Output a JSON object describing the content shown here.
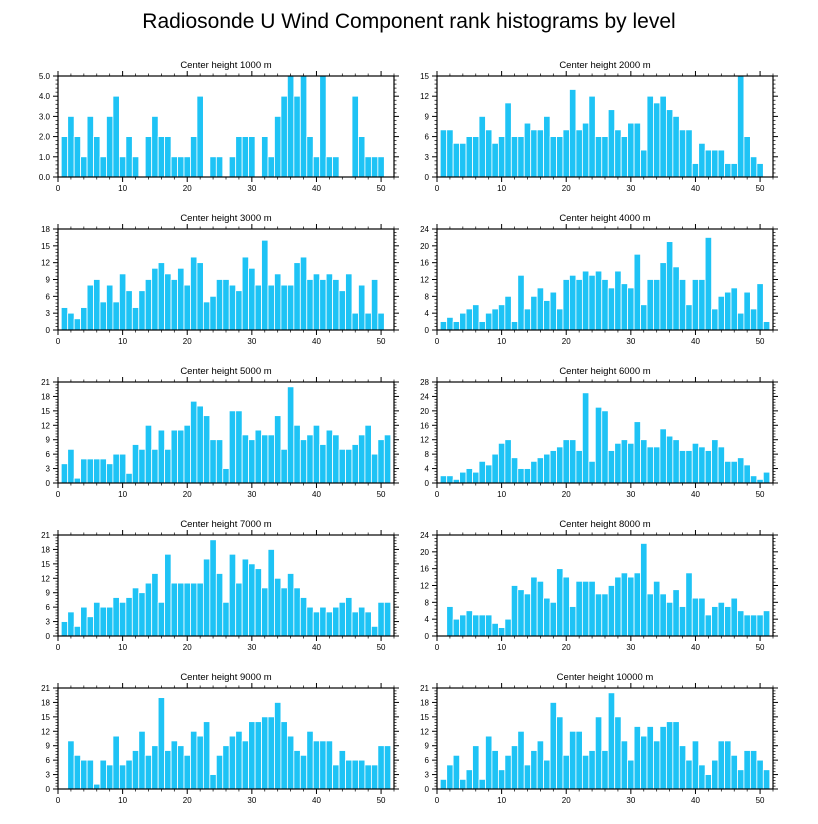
{
  "title": "Radiosonde U Wind Component rank histograms by level",
  "colors": {
    "bar": "#1EC3F5",
    "frame": "#000000",
    "bar_edge": "#ffffff"
  },
  "chart_data": [
    {
      "type": "bar",
      "title": "Center height 1000 m",
      "x": [
        1,
        2,
        3,
        4,
        5,
        6,
        7,
        8,
        9,
        10,
        11,
        12,
        13,
        14,
        15,
        16,
        17,
        18,
        19,
        20,
        21,
        22,
        23,
        24,
        25,
        26,
        27,
        28,
        29,
        30,
        31,
        32,
        33,
        34,
        35,
        36,
        37,
        38,
        39,
        40,
        41,
        42,
        43,
        44,
        45,
        46,
        47,
        48,
        49,
        50,
        51
      ],
      "values": [
        2.0,
        3.0,
        2.0,
        1.0,
        3.0,
        2.0,
        1.0,
        3.0,
        4.0,
        1.0,
        2.0,
        1.0,
        0.0,
        2.0,
        3.0,
        2.0,
        2.0,
        1.0,
        1.0,
        1.0,
        2.0,
        4.0,
        0.0,
        1.0,
        1.0,
        0.0,
        1.0,
        2.0,
        2.0,
        2.0,
        0.0,
        2.0,
        1.0,
        3.0,
        4.0,
        5.0,
        4.0,
        5.0,
        2.0,
        1.0,
        5.0,
        1.0,
        1.0,
        0.0,
        0.0,
        4.0,
        2.0,
        1.0,
        1.0,
        1.0,
        0.0
      ],
      "xlim": [
        0,
        52
      ],
      "ylim": [
        0,
        5
      ],
      "xticks": [
        0,
        10,
        20,
        30,
        40,
        50
      ],
      "yticks": [
        0,
        1,
        2,
        3,
        4,
        5
      ],
      "ytick_labels": [
        "0.0",
        "1.0",
        "2.0",
        "3.0",
        "4.0",
        "5.0"
      ],
      "xlabel": "",
      "ylabel": ""
    },
    {
      "type": "bar",
      "title": "Center height 2000 m",
      "x": [
        1,
        2,
        3,
        4,
        5,
        6,
        7,
        8,
        9,
        10,
        11,
        12,
        13,
        14,
        15,
        16,
        17,
        18,
        19,
        20,
        21,
        22,
        23,
        24,
        25,
        26,
        27,
        28,
        29,
        30,
        31,
        32,
        33,
        34,
        35,
        36,
        37,
        38,
        39,
        40,
        41,
        42,
        43,
        44,
        45,
        46,
        47,
        48,
        49,
        50,
        51
      ],
      "values": [
        7,
        7,
        5,
        5,
        6,
        6,
        9,
        7,
        5,
        6,
        11,
        6,
        6,
        8,
        7,
        7,
        9,
        6,
        6,
        7,
        13,
        7,
        8,
        12,
        6,
        6,
        10,
        7,
        6,
        8,
        8,
        4,
        12,
        11,
        12,
        10,
        9,
        7,
        7,
        2,
        5,
        4,
        4,
        4,
        2,
        2,
        15,
        6,
        3,
        2,
        0
      ],
      "xlim": [
        0,
        52
      ],
      "ylim": [
        0,
        15
      ],
      "xticks": [
        0,
        10,
        20,
        30,
        40,
        50
      ],
      "yticks": [
        0,
        3,
        6,
        9,
        12,
        15
      ],
      "ytick_labels": [
        "0",
        "3",
        "6",
        "9",
        "12",
        "15"
      ],
      "xlabel": "",
      "ylabel": ""
    },
    {
      "type": "bar",
      "title": "Center height 3000 m",
      "x": [
        1,
        2,
        3,
        4,
        5,
        6,
        7,
        8,
        9,
        10,
        11,
        12,
        13,
        14,
        15,
        16,
        17,
        18,
        19,
        20,
        21,
        22,
        23,
        24,
        25,
        26,
        27,
        28,
        29,
        30,
        31,
        32,
        33,
        34,
        35,
        36,
        37,
        38,
        39,
        40,
        41,
        42,
        43,
        44,
        45,
        46,
        47,
        48,
        49,
        50,
        51
      ],
      "values": [
        4,
        3,
        2,
        4,
        8,
        9,
        5,
        8,
        5,
        10,
        7,
        4,
        7,
        9,
        11,
        12,
        10,
        9,
        11,
        8,
        13,
        12,
        5,
        6,
        9,
        9,
        8,
        7,
        13,
        11,
        8,
        16,
        8,
        10,
        8,
        8,
        12,
        13,
        9,
        10,
        9,
        10,
        9,
        7,
        10,
        3,
        8,
        3,
        9,
        3,
        0
      ],
      "xlim": [
        0,
        52
      ],
      "ylim": [
        0,
        18
      ],
      "xticks": [
        0,
        10,
        20,
        30,
        40,
        50
      ],
      "yticks": [
        0,
        3,
        6,
        9,
        12,
        15,
        18
      ],
      "ytick_labels": [
        "0",
        "3",
        "6",
        "9",
        "12",
        "15",
        "18"
      ],
      "xlabel": "",
      "ylabel": ""
    },
    {
      "type": "bar",
      "title": "Center height 4000 m",
      "x": [
        1,
        2,
        3,
        4,
        5,
        6,
        7,
        8,
        9,
        10,
        11,
        12,
        13,
        14,
        15,
        16,
        17,
        18,
        19,
        20,
        21,
        22,
        23,
        24,
        25,
        26,
        27,
        28,
        29,
        30,
        31,
        32,
        33,
        34,
        35,
        36,
        37,
        38,
        39,
        40,
        41,
        42,
        43,
        44,
        45,
        46,
        47,
        48,
        49,
        50,
        51
      ],
      "values": [
        2,
        3,
        2,
        4,
        5,
        6,
        2,
        4,
        5,
        6,
        8,
        2,
        13,
        5,
        8,
        10,
        7,
        9,
        5,
        12,
        13,
        12,
        14,
        13,
        14,
        12,
        10,
        14,
        11,
        10,
        18,
        6,
        12,
        12,
        16,
        21,
        15,
        12,
        6,
        12,
        12,
        22,
        5,
        8,
        9,
        10,
        4,
        9,
        5,
        11,
        2
      ],
      "xlim": [
        0,
        52
      ],
      "ylim": [
        0,
        24
      ],
      "xticks": [
        0,
        10,
        20,
        30,
        40,
        50
      ],
      "yticks": [
        0,
        4,
        8,
        12,
        16,
        20,
        24
      ],
      "ytick_labels": [
        "0",
        "4",
        "8",
        "12",
        "16",
        "20",
        "24"
      ],
      "xlabel": "",
      "ylabel": ""
    },
    {
      "type": "bar",
      "title": "Center height 5000 m",
      "x": [
        1,
        2,
        3,
        4,
        5,
        6,
        7,
        8,
        9,
        10,
        11,
        12,
        13,
        14,
        15,
        16,
        17,
        18,
        19,
        20,
        21,
        22,
        23,
        24,
        25,
        26,
        27,
        28,
        29,
        30,
        31,
        32,
        33,
        34,
        35,
        36,
        37,
        38,
        39,
        40,
        41,
        42,
        43,
        44,
        45,
        46,
        47,
        48,
        49,
        50,
        51
      ],
      "values": [
        4,
        7,
        1,
        5,
        5,
        5,
        5,
        4,
        6,
        6,
        2,
        8,
        7,
        12,
        7,
        11,
        7,
        11,
        11,
        12,
        17,
        16,
        14,
        9,
        9,
        3,
        15,
        15,
        10,
        9,
        11,
        10,
        10,
        14,
        7,
        20,
        12,
        9,
        10,
        12,
        8,
        11,
        10,
        7,
        7,
        8,
        10,
        12,
        6,
        9,
        10
      ],
      "xlim": [
        0,
        52
      ],
      "ylim": [
        0,
        21
      ],
      "xticks": [
        0,
        10,
        20,
        30,
        40,
        50
      ],
      "yticks": [
        0,
        3,
        6,
        9,
        12,
        15,
        18,
        21
      ],
      "ytick_labels": [
        "0",
        "3",
        "6",
        "9",
        "12",
        "15",
        "18",
        "21"
      ],
      "xlabel": "",
      "ylabel": ""
    },
    {
      "type": "bar",
      "title": "Center height 6000 m",
      "x": [
        1,
        2,
        3,
        4,
        5,
        6,
        7,
        8,
        9,
        10,
        11,
        12,
        13,
        14,
        15,
        16,
        17,
        18,
        19,
        20,
        21,
        22,
        23,
        24,
        25,
        26,
        27,
        28,
        29,
        30,
        31,
        32,
        33,
        34,
        35,
        36,
        37,
        38,
        39,
        40,
        41,
        42,
        43,
        44,
        45,
        46,
        47,
        48,
        49,
        50,
        51
      ],
      "values": [
        2,
        2,
        1,
        3,
        4,
        3,
        6,
        5,
        8,
        11,
        12,
        7,
        4,
        4,
        6,
        7,
        8,
        9,
        10,
        12,
        12,
        9,
        25,
        6,
        21,
        20,
        9,
        11,
        12,
        11,
        17,
        12,
        10,
        10,
        15,
        13,
        12,
        9,
        9,
        11,
        10,
        9,
        12,
        10,
        6,
        6,
        7,
        5,
        2,
        1,
        3
      ],
      "xlim": [
        0,
        52
      ],
      "ylim": [
        0,
        28
      ],
      "xticks": [
        0,
        10,
        20,
        30,
        40,
        50
      ],
      "yticks": [
        0,
        4,
        8,
        12,
        16,
        20,
        24,
        28
      ],
      "ytick_labels": [
        "0",
        "4",
        "8",
        "12",
        "16",
        "20",
        "24",
        "28"
      ],
      "xlabel": "",
      "ylabel": ""
    },
    {
      "type": "bar",
      "title": "Center height 7000 m",
      "x": [
        1,
        2,
        3,
        4,
        5,
        6,
        7,
        8,
        9,
        10,
        11,
        12,
        13,
        14,
        15,
        16,
        17,
        18,
        19,
        20,
        21,
        22,
        23,
        24,
        25,
        26,
        27,
        28,
        29,
        30,
        31,
        32,
        33,
        34,
        35,
        36,
        37,
        38,
        39,
        40,
        41,
        42,
        43,
        44,
        45,
        46,
        47,
        48,
        49,
        50,
        51
      ],
      "values": [
        3,
        5,
        2,
        6,
        4,
        7,
        6,
        6,
        8,
        7,
        8,
        10,
        9,
        11,
        13,
        7,
        17,
        11,
        11,
        11,
        11,
        11,
        16,
        20,
        13,
        7,
        17,
        11,
        16,
        15,
        14,
        10,
        18,
        12,
        10,
        13,
        10,
        8,
        6,
        5,
        6,
        5,
        6,
        7,
        8,
        5,
        6,
        5,
        2,
        7,
        7
      ],
      "xlim": [
        0,
        52
      ],
      "ylim": [
        0,
        21
      ],
      "xticks": [
        0,
        10,
        20,
        30,
        40,
        50
      ],
      "yticks": [
        0,
        3,
        6,
        9,
        12,
        15,
        18,
        21
      ],
      "ytick_labels": [
        "0",
        "3",
        "6",
        "9",
        "12",
        "15",
        "18",
        "21"
      ],
      "xlabel": "",
      "ylabel": ""
    },
    {
      "type": "bar",
      "title": "Center height 8000 m",
      "x": [
        1,
        2,
        3,
        4,
        5,
        6,
        7,
        8,
        9,
        10,
        11,
        12,
        13,
        14,
        15,
        16,
        17,
        18,
        19,
        20,
        21,
        22,
        23,
        24,
        25,
        26,
        27,
        28,
        29,
        30,
        31,
        32,
        33,
        34,
        35,
        36,
        37,
        38,
        39,
        40,
        41,
        42,
        43,
        44,
        45,
        46,
        47,
        48,
        49,
        50,
        51
      ],
      "values": [
        0,
        7,
        4,
        5,
        6,
        5,
        5,
        5,
        3,
        2,
        4,
        12,
        11,
        10,
        14,
        13,
        9,
        8,
        16,
        14,
        7,
        13,
        13,
        13,
        10,
        10,
        12,
        14,
        15,
        14,
        15,
        22,
        10,
        13,
        10,
        8,
        11,
        7,
        15,
        9,
        9,
        5,
        7,
        8,
        7,
        9,
        6,
        5,
        5,
        5,
        6
      ],
      "xlim": [
        0,
        52
      ],
      "ylim": [
        0,
        24
      ],
      "xticks": [
        0,
        10,
        20,
        30,
        40,
        50
      ],
      "yticks": [
        0,
        4,
        8,
        12,
        16,
        20,
        24
      ],
      "ytick_labels": [
        "0",
        "4",
        "8",
        "12",
        "16",
        "20",
        "24"
      ],
      "xlabel": "",
      "ylabel": ""
    },
    {
      "type": "bar",
      "title": "Center height 9000 m",
      "x": [
        1,
        2,
        3,
        4,
        5,
        6,
        7,
        8,
        9,
        10,
        11,
        12,
        13,
        14,
        15,
        16,
        17,
        18,
        19,
        20,
        21,
        22,
        23,
        24,
        25,
        26,
        27,
        28,
        29,
        30,
        31,
        32,
        33,
        34,
        35,
        36,
        37,
        38,
        39,
        40,
        41,
        42,
        43,
        44,
        45,
        46,
        47,
        48,
        49,
        50,
        51
      ],
      "values": [
        0,
        10,
        7,
        6,
        6,
        1,
        6,
        5,
        11,
        5,
        6,
        8,
        12,
        7,
        9,
        19,
        8,
        10,
        9,
        7,
        12,
        11,
        14,
        3,
        7,
        9,
        11,
        12,
        10,
        14,
        14,
        15,
        15,
        18,
        14,
        11,
        8,
        7,
        12,
        10,
        10,
        10,
        5,
        8,
        6,
        6,
        6,
        5,
        5,
        9,
        9
      ],
      "xlim": [
        0,
        52
      ],
      "ylim": [
        0,
        21
      ],
      "xticks": [
        0,
        10,
        20,
        30,
        40,
        50
      ],
      "yticks": [
        0,
        3,
        6,
        9,
        12,
        15,
        18,
        21
      ],
      "ytick_labels": [
        "0",
        "3",
        "6",
        "9",
        "12",
        "15",
        "18",
        "21"
      ],
      "xlabel": "",
      "ylabel": ""
    },
    {
      "type": "bar",
      "title": "Center height 10000 m",
      "x": [
        1,
        2,
        3,
        4,
        5,
        6,
        7,
        8,
        9,
        10,
        11,
        12,
        13,
        14,
        15,
        16,
        17,
        18,
        19,
        20,
        21,
        22,
        23,
        24,
        25,
        26,
        27,
        28,
        29,
        30,
        31,
        32,
        33,
        34,
        35,
        36,
        37,
        38,
        39,
        40,
        41,
        42,
        43,
        44,
        45,
        46,
        47,
        48,
        49,
        50,
        51
      ],
      "values": [
        2,
        5,
        7,
        2,
        4,
        9,
        2,
        11,
        8,
        4,
        7,
        9,
        12,
        5,
        8,
        10,
        6,
        18,
        15,
        7,
        12,
        12,
        7,
        8,
        15,
        8,
        20,
        15,
        10,
        6,
        13,
        11,
        13,
        10,
        13,
        14,
        14,
        9,
        6,
        10,
        5,
        3,
        6,
        10,
        10,
        7,
        4,
        8,
        8,
        6,
        4
      ],
      "xlim": [
        0,
        52
      ],
      "ylim": [
        0,
        21
      ],
      "xticks": [
        0,
        10,
        20,
        30,
        40,
        50
      ],
      "yticks": [
        0,
        3,
        6,
        9,
        12,
        15,
        18,
        21
      ],
      "ytick_labels": [
        "0",
        "3",
        "6",
        "9",
        "12",
        "15",
        "18",
        "21"
      ],
      "xlabel": "",
      "ylabel": ""
    }
  ]
}
